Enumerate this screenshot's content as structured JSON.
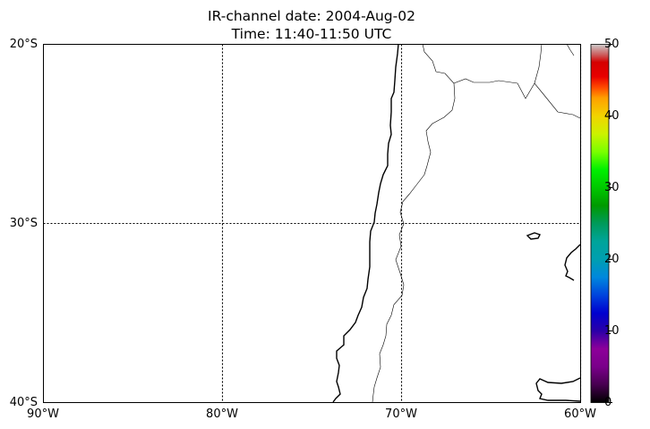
{
  "title": {
    "line1": "IR-channel date: 2004-Aug-02",
    "line2": "Time: 11:40-11:50 UTC"
  },
  "map": {
    "lat_ticks": [
      "20°S",
      "30°S",
      "40°S"
    ],
    "lon_ticks": [
      "90°W",
      "80°W",
      "70°W",
      "60°W"
    ],
    "lat_range": [
      -40,
      -20
    ],
    "lon_range": [
      -90,
      -60
    ],
    "gridlines": "dotted"
  },
  "colorbar": {
    "ticks": [
      "0",
      "10",
      "20",
      "30",
      "40",
      "50"
    ],
    "range": [
      0,
      50
    ],
    "colormap": "nipy_spectral"
  }
}
